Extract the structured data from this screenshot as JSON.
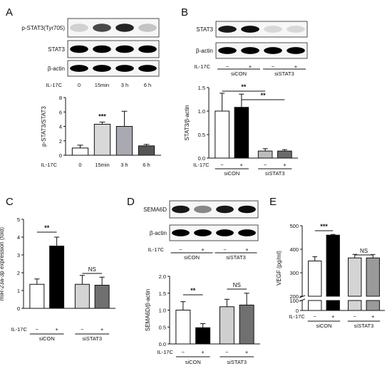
{
  "panels": [
    {
      "id": "A",
      "label": "A",
      "blots": [
        "p-STAT3(Tyr705)",
        "STAT3",
        "β-actin"
      ],
      "treatment_row": {
        "label": "IL-17C",
        "values": [
          "0",
          "15min",
          "3 h",
          "6 h"
        ]
      }
    },
    {
      "id": "B",
      "label": "B",
      "blots": [
        "STAT3",
        "β-actin"
      ],
      "treatment_row": {
        "label": "IL-17C",
        "values": [
          "−",
          "+",
          "−",
          "+"
        ]
      },
      "groups": [
        "siCON",
        "siSTAT3"
      ]
    },
    {
      "id": "C",
      "label": "C",
      "treatment_row": {
        "label": "IL-17C",
        "values": [
          "−",
          "+",
          "−",
          "+"
        ]
      },
      "groups": [
        "siCON",
        "siSTAT3"
      ]
    },
    {
      "id": "D",
      "label": "D",
      "blots": [
        "SEMA6D",
        "β-actin"
      ],
      "treatment_row": {
        "label": "IL-17C",
        "values": [
          "−",
          "+",
          "−",
          "+"
        ]
      },
      "groups": [
        "siCON",
        "siSTAT3"
      ],
      "chart_treatment_row": {
        "label": "IL-17C",
        "values": [
          "−",
          "+",
          "−",
          "+"
        ]
      },
      "chart_groups": [
        "siCON",
        "siSTAT3"
      ]
    },
    {
      "id": "E",
      "label": "E",
      "treatment_row": {
        "label": "IL-17C",
        "values": [
          "−",
          "+",
          "−",
          "+"
        ]
      },
      "groups": [
        "siCON",
        "siSTAT3"
      ]
    }
  ],
  "chart_data": [
    {
      "panel": "A",
      "type": "bar",
      "ylabel": "p-STAT3/STAT3",
      "ylim": [
        0,
        8
      ],
      "yticks": [
        "0",
        "2",
        "4",
        "6",
        "8"
      ],
      "categories": [
        "0",
        "15min",
        "3 h",
        "6 h"
      ],
      "values": [
        1.0,
        4.3,
        4.0,
        1.3
      ],
      "errors": [
        0.4,
        0.3,
        2.1,
        0.2
      ],
      "colors": [
        "#ffffff",
        "#d8d8d8",
        "#a9a9b1",
        "#555555"
      ],
      "xlabel": "IL-17C",
      "annotations": [
        {
          "text": "***",
          "bar": 1
        }
      ]
    },
    {
      "panel": "B",
      "type": "bar",
      "ylabel": "STAT3/β-actin",
      "ylim": [
        0,
        1.5
      ],
      "yticks": [
        "0.0",
        "0.5",
        "1.0",
        "1.5"
      ],
      "categories": [
        "−",
        "+",
        "−",
        "+"
      ],
      "groups": [
        "siCON",
        "siSTAT3"
      ],
      "values": [
        1.0,
        1.08,
        0.15,
        0.15
      ],
      "errors": [
        0.38,
        0.28,
        0.05,
        0.03
      ],
      "colors": [
        "#ffffff",
        "#000000",
        "#bdbdbd",
        "#6b6b6b"
      ],
      "xlabel": "IL-17C",
      "brackets": [
        {
          "from": 0,
          "to": 2,
          "label": "**"
        },
        {
          "from": 1,
          "to": 3,
          "label": "**"
        }
      ]
    },
    {
      "panel": "C",
      "type": "bar",
      "ylabel": "miR-23a-3p expression (fold)",
      "ylim": [
        0,
        5
      ],
      "yticks": [
        "0",
        "1",
        "2",
        "3",
        "4",
        "5"
      ],
      "categories": [
        "−",
        "+",
        "−",
        "+"
      ],
      "groups": [
        "siCON",
        "siSTAT3"
      ],
      "values": [
        1.35,
        3.5,
        1.35,
        1.3
      ],
      "errors": [
        0.3,
        0.5,
        0.5,
        0.45
      ],
      "colors": [
        "#ffffff",
        "#000000",
        "#d4d4d4",
        "#707070"
      ],
      "xlabel": "IL-17C",
      "brackets": [
        {
          "from": 0,
          "to": 1,
          "label": "**"
        },
        {
          "from": 2,
          "to": 3,
          "label": "NS"
        }
      ]
    },
    {
      "panel": "D",
      "type": "bar",
      "ylabel": "SEMA6D/β-actin",
      "ylim": [
        0,
        2.0
      ],
      "yticks": [
        "0.0",
        "0.5",
        "1.0",
        "1.5",
        "2.0"
      ],
      "categories": [
        "−",
        "+",
        "−",
        "+"
      ],
      "groups": [
        "siCON",
        "siSTAT3"
      ],
      "values": [
        1.0,
        0.48,
        1.1,
        1.15
      ],
      "errors": [
        0.25,
        0.12,
        0.22,
        0.35
      ],
      "colors": [
        "#ffffff",
        "#000000",
        "#cfcfcf",
        "#707070"
      ],
      "xlabel": "IL-17C",
      "brackets": [
        {
          "from": 0,
          "to": 1,
          "label": "**"
        },
        {
          "from": 2,
          "to": 3,
          "label": "NS"
        }
      ]
    },
    {
      "panel": "E",
      "type": "bar",
      "ylabel": "VEGF (pg/ml)",
      "broken_axis": {
        "lower": [
          0,
          100
        ],
        "upper": [
          200,
          500
        ]
      },
      "yticks": [
        "0",
        "100",
        "200",
        "300",
        "400",
        "500"
      ],
      "categories": [
        "−",
        "+",
        "−",
        "+"
      ],
      "groups": [
        "siCON",
        "siSTAT3"
      ],
      "values": [
        350,
        460,
        363,
        363
      ],
      "errors": [
        18,
        3,
        15,
        14
      ],
      "colors": [
        "#ffffff",
        "#000000",
        "#d4d4d4",
        "#9a9a9a"
      ],
      "xlabel": "IL-17C",
      "brackets": [
        {
          "from": 0,
          "to": 1,
          "label": "***"
        },
        {
          "from": 2,
          "to": 3,
          "label": "NS"
        }
      ]
    }
  ]
}
